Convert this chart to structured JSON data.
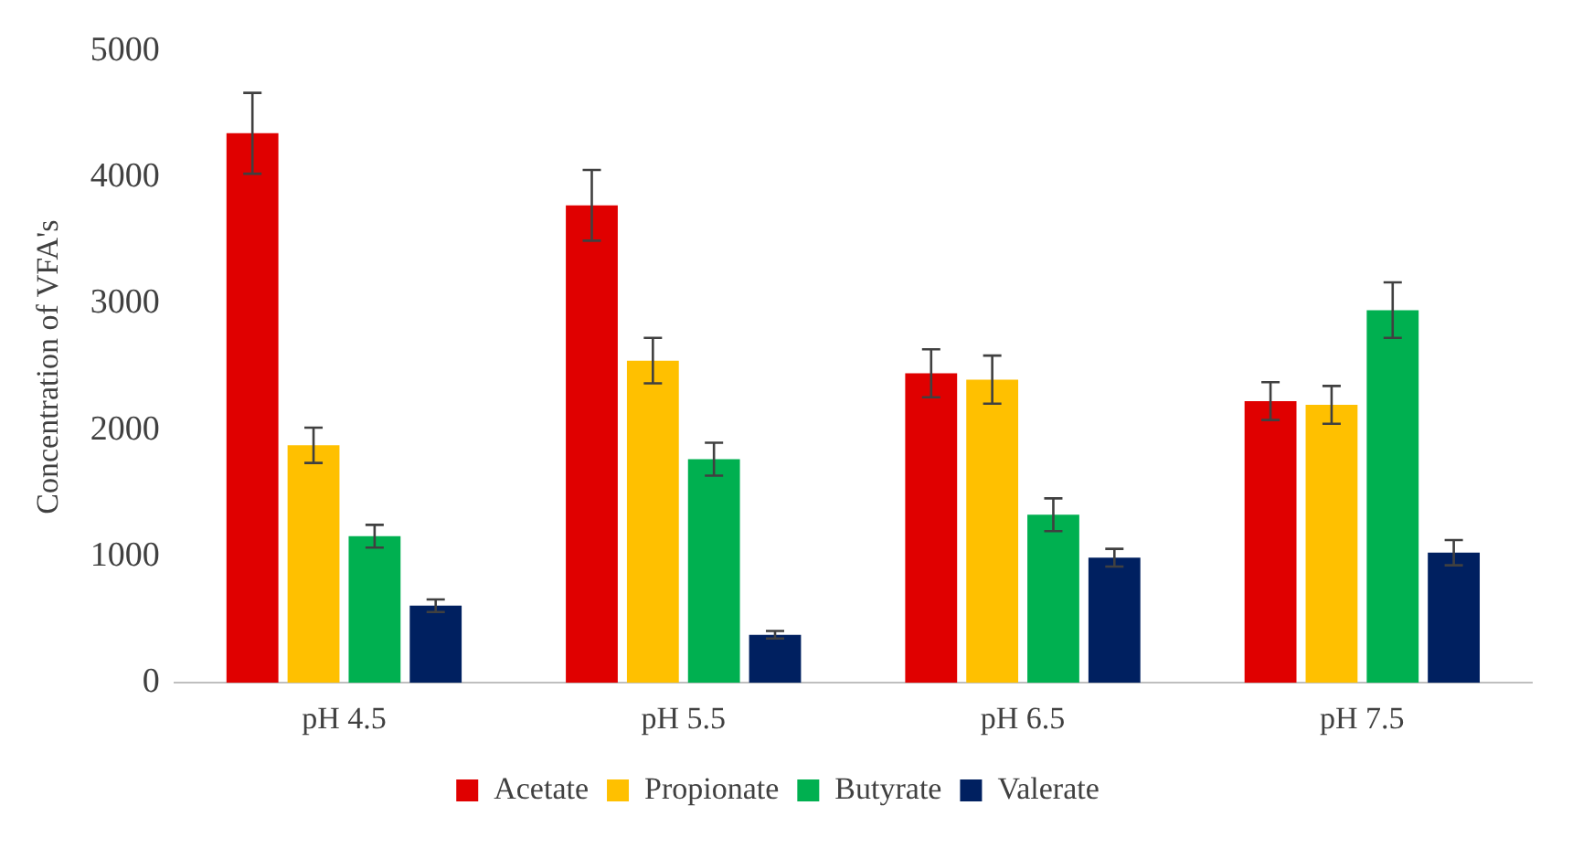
{
  "chart_data": {
    "type": "bar",
    "ylabel": "Concentration of VFA's",
    "categories": [
      "pH 4.5",
      "pH 5.5",
      "pH 6.5",
      "pH 7.5"
    ],
    "series": [
      {
        "name": "Acetate",
        "color": "#e00000",
        "values": [
          4350,
          3780,
          2450,
          2230
        ],
        "errors": [
          320,
          280,
          190,
          150
        ]
      },
      {
        "name": "Propionate",
        "color": "#ffc000",
        "values": [
          1880,
          2550,
          2400,
          2200
        ],
        "errors": [
          140,
          180,
          190,
          150
        ]
      },
      {
        "name": "Butyrate",
        "color": "#00b050",
        "values": [
          1160,
          1770,
          1330,
          2950
        ],
        "errors": [
          90,
          130,
          130,
          220
        ]
      },
      {
        "name": "Valerate",
        "color": "#002060",
        "values": [
          610,
          380,
          990,
          1030
        ],
        "errors": [
          50,
          30,
          70,
          100
        ]
      }
    ],
    "ylim": [
      0,
      5000
    ],
    "yticks": [
      0,
      1000,
      2000,
      3000,
      4000,
      5000
    ],
    "grid": false,
    "legend": "bottom"
  }
}
